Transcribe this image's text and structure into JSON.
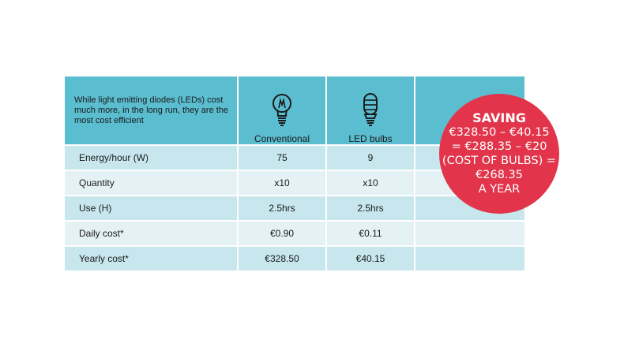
{
  "intro": "While light emitting diodes (LEDs) cost much more, in the long run, they are the most cost efficient",
  "columns": {
    "conventional": {
      "label": "Conventional",
      "icon": "incandescent-bulb-icon"
    },
    "led": {
      "label": "LED bulbs",
      "icon": "led-bulb-icon"
    }
  },
  "rows": [
    {
      "label": "Energy/hour (W)",
      "conventional": "75",
      "led": "9"
    },
    {
      "label": "Quantity",
      "conventional": "x10",
      "led": "x10"
    },
    {
      "label": "Use (H)",
      "conventional": "2.5hrs",
      "led": "2.5hrs"
    },
    {
      "label": "Daily cost*",
      "conventional": "€0.90",
      "led": "€0.11"
    },
    {
      "label": "Yearly cost*",
      "conventional": "€328.50",
      "led": "€40.15"
    }
  ],
  "saving": {
    "title": "SAVING",
    "line1": "€328.50 – €40.15",
    "line2": "= €288.35 – €20",
    "line3": "(COST OF BULBS) =",
    "line4": "€268.35",
    "line5": "A YEAR"
  },
  "colors": {
    "header": "#5bbdd0",
    "row_light": "#c7e6ee",
    "row_pale": "#e4f2f6",
    "badge": "#e2354b"
  }
}
